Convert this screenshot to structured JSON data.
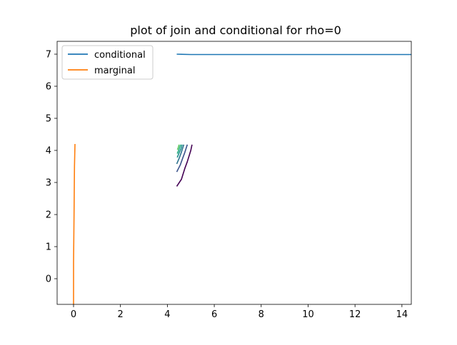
{
  "chart_data": {
    "type": "line",
    "title": "plot of join and conditional for rho=0",
    "xlabel": "",
    "ylabel": "",
    "xlim": [
      -0.7,
      14.4
    ],
    "ylim": [
      -0.8,
      7.4
    ],
    "xticks": [
      0,
      2,
      4,
      6,
      8,
      10,
      12,
      14
    ],
    "yticks": [
      0,
      1,
      2,
      3,
      4,
      5,
      6,
      7
    ],
    "grid": false,
    "legend_position": "upper-left",
    "series": [
      {
        "name": "conditional",
        "color": "#1f77b4",
        "x": [
          4.4,
          5.0,
          6.0,
          8.0,
          10.0,
          12.0,
          14.4
        ],
        "y": [
          7.0,
          6.99,
          6.99,
          6.99,
          6.99,
          6.99,
          6.99
        ]
      },
      {
        "name": "marginal",
        "color": "#ff7f0e",
        "x": [
          0.0,
          0.0,
          0.02,
          0.04,
          0.06
        ],
        "y": [
          -0.8,
          0.5,
          2.0,
          3.5,
          4.2
        ]
      }
    ],
    "contours": [
      {
        "color": "#440154",
        "x": [
          4.4,
          4.6,
          4.75,
          4.85,
          5.0,
          5.05
        ],
        "y": [
          2.88,
          3.1,
          3.45,
          3.65,
          4.0,
          4.18
        ]
      },
      {
        "color": "#3b528b",
        "x": [
          4.4,
          4.55,
          4.65,
          4.75,
          4.85
        ],
        "y": [
          3.33,
          3.55,
          3.75,
          3.95,
          4.18
        ]
      },
      {
        "color": "#2c728e",
        "x": [
          4.4,
          4.5,
          4.6,
          4.7
        ],
        "y": [
          3.58,
          3.75,
          3.95,
          4.18
        ]
      },
      {
        "color": "#21918c",
        "x": [
          4.42,
          4.5,
          4.58,
          4.63
        ],
        "y": [
          3.78,
          3.92,
          4.05,
          4.18
        ]
      },
      {
        "color": "#27ad81",
        "x": [
          4.42,
          4.48,
          4.53,
          4.57
        ],
        "y": [
          3.9,
          4.0,
          4.1,
          4.18
        ]
      },
      {
        "color": "#5ec962",
        "x": [
          4.43,
          4.47,
          4.5
        ],
        "y": [
          4.02,
          4.1,
          4.18
        ]
      }
    ]
  }
}
